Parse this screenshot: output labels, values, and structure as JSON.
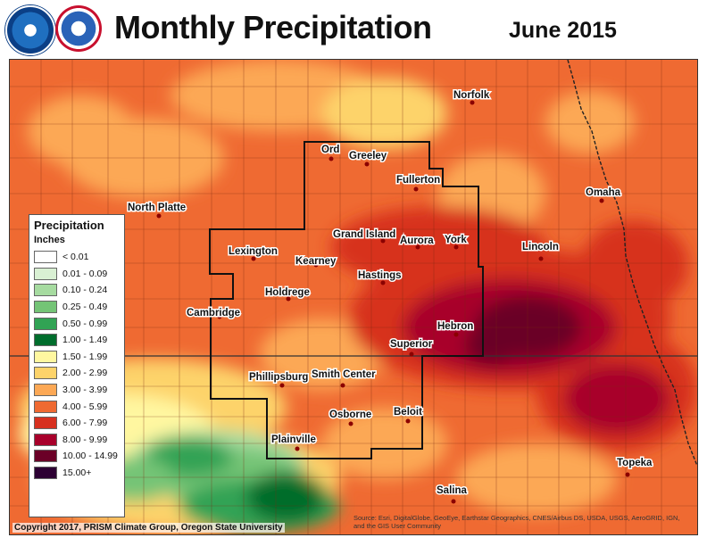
{
  "header": {
    "title": "Monthly Precipitation",
    "period": "June 2015"
  },
  "legend": {
    "title": "Precipitation",
    "units": "Inches",
    "items": [
      {
        "label": "< 0.01",
        "color": "#ffffff"
      },
      {
        "label": "0.01 - 0.09",
        "color": "#d9f0d3"
      },
      {
        "label": "0.10 - 0.24",
        "color": "#a6dba0"
      },
      {
        "label": "0.25 - 0.49",
        "color": "#74c476"
      },
      {
        "label": "0.50 - 0.99",
        "color": "#31a354"
      },
      {
        "label": "1.00 - 1.49",
        "color": "#006d2c"
      },
      {
        "label": "1.50 - 1.99",
        "color": "#fff7a0"
      },
      {
        "label": "2.00 - 2.99",
        "color": "#fdd36a"
      },
      {
        "label": "3.00 - 3.99",
        "color": "#fca855"
      },
      {
        "label": "4.00 - 5.99",
        "color": "#ef6a32"
      },
      {
        "label": "6.00 - 7.99",
        "color": "#d7301f"
      },
      {
        "label": "8.00 - 9.99",
        "color": "#a8002b"
      },
      {
        "label": "10.00 - 14.99",
        "color": "#6b0027"
      },
      {
        "label": "15.00+",
        "color": "#2d0033"
      }
    ]
  },
  "cities": [
    {
      "name": "Norfolk"
    },
    {
      "name": "Ord"
    },
    {
      "name": "Greeley"
    },
    {
      "name": "Fullerton"
    },
    {
      "name": "Omaha"
    },
    {
      "name": "North Platte"
    },
    {
      "name": "Grand Island"
    },
    {
      "name": "Aurora"
    },
    {
      "name": "York"
    },
    {
      "name": "Lincoln"
    },
    {
      "name": "Lexington"
    },
    {
      "name": "Kearney"
    },
    {
      "name": "Hastings"
    },
    {
      "name": "Holdrege"
    },
    {
      "name": "Cambridge"
    },
    {
      "name": "Hebron"
    },
    {
      "name": "Superior"
    },
    {
      "name": "Phillipsburg"
    },
    {
      "name": "Smith Center"
    },
    {
      "name": "Osborne"
    },
    {
      "name": "Beloit"
    },
    {
      "name": "Plainville"
    },
    {
      "name": "Topeka"
    },
    {
      "name": "Salina"
    }
  ],
  "footer": {
    "copyright": "Copyright 2017, PRISM Climate Group, Oregon State University",
    "source": "Source: Esri, DigitalGlobe, GeoEye, Earthstar Geographics, CNES/Airbus DS, USDA, USGS, AeroGRID, IGN, and the GIS User Community"
  }
}
